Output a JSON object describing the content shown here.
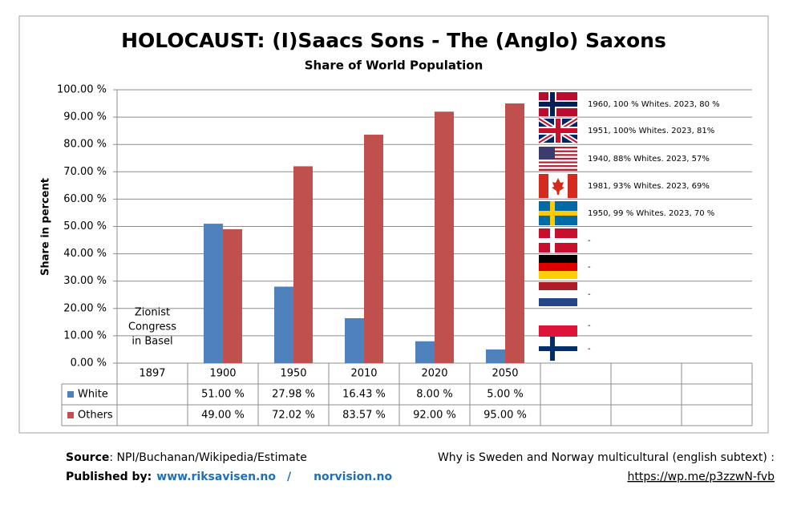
{
  "chart_data": {
    "type": "bar",
    "title": "HOLOCAUST: (I)Saacs Sons - The (Anglo) Saxons",
    "subtitle": "Share of World Population",
    "y_label": "Share in percent",
    "categories": [
      "1897",
      "1900",
      "1950",
      "2010",
      "2020",
      "2050",
      null,
      null,
      null
    ],
    "series": [
      {
        "name": "White",
        "color": "#4f81bd",
        "values": [
          null,
          51,
          27.98,
          16.43,
          8,
          5,
          null,
          null,
          null
        ],
        "value_labels": [
          null,
          "51.00 %",
          "27.98 %",
          "16.43 %",
          "8.00 %",
          "5.00 %",
          null,
          null,
          null
        ]
      },
      {
        "name": "Others",
        "color": "#c0504d",
        "values": [
          null,
          49,
          72.02,
          83.57,
          92,
          95,
          null,
          null,
          null
        ],
        "value_labels": [
          null,
          "49.00 %",
          "72.02 %",
          "83.57 %",
          "92.00 %",
          "95.00 %",
          null,
          null,
          null
        ]
      }
    ],
    "ylim": [
      0,
      100
    ],
    "yticks": [
      {
        "value": 0,
        "label": "0.00 %"
      },
      {
        "value": 10,
        "label": "10.00 %"
      },
      {
        "value": 20,
        "label": "20.00 %"
      },
      {
        "value": 30,
        "label": "30.00 %"
      },
      {
        "value": 40,
        "label": "40.00 %"
      },
      {
        "value": 50,
        "label": "50.00 %"
      },
      {
        "value": 60,
        "label": "60.00 %"
      },
      {
        "value": 70,
        "label": "70.00 %"
      },
      {
        "value": 80,
        "label": "80.00 %"
      },
      {
        "value": 90,
        "label": "90.00 %"
      },
      {
        "value": 100,
        "label": "100.00 %"
      }
    ],
    "grid": true,
    "legend": "table",
    "annotation": [
      "Zionist",
      "Congress",
      "in Basel"
    ],
    "flag_notes": [
      "1960, 100 % Whites. 2023, 80 %",
      "1951, 100% Whites. 2023, 81%",
      "1940, 88% Whites. 2023, 57%",
      "1981, 93% Whites. 2023, 69%",
      "1950, 99 % Whites. 2023,  70 %",
      "-",
      "-",
      "-",
      "-",
      "-"
    ]
  },
  "footer": {
    "source_label": "Source",
    "source": ": NPI/Buchanan/Wikipedia/Estimate",
    "published_label": "Published by:",
    "link1": "www.riksavisen.no",
    "separator": "/",
    "link2": "norvision.no",
    "question": "Why is Sweden and Norway multicultural (english subtext) :",
    "link3": "https://wp.me/p3zzwN-fvb"
  }
}
